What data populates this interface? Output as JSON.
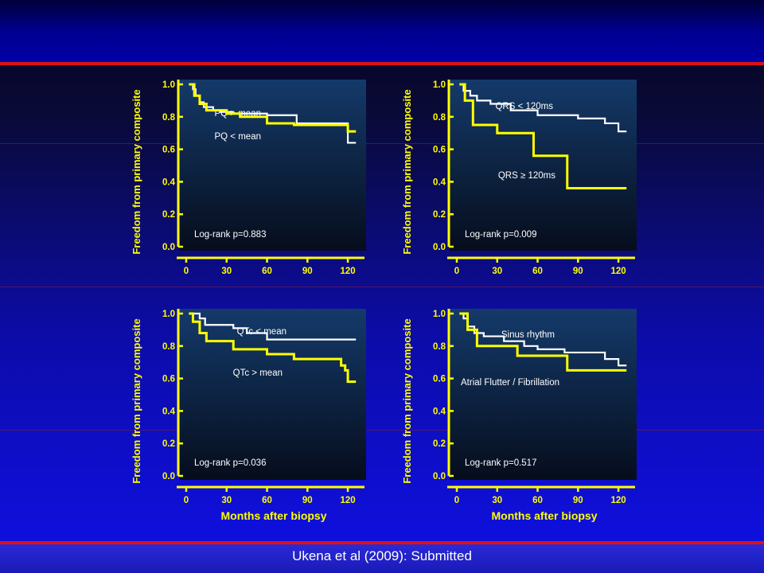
{
  "citation": "Ukena et al (2009): Submitted",
  "colors": {
    "axis": "#ffff00",
    "series_white": "#ffffff",
    "series_yellow": "#ffff00",
    "accent_red": "#e01010"
  },
  "chart_data": [
    {
      "type": "line",
      "ylabel": "Freedom from primary composite",
      "xlabel": "",
      "xlim": [
        0,
        130
      ],
      "ylim": [
        0,
        1.0
      ],
      "xticks": [
        "0",
        "30",
        "60",
        "90",
        "120"
      ],
      "yticks": [
        "0.0",
        "0.2",
        "0.4",
        "0.6",
        "0.8",
        "1.0"
      ],
      "annotation": "Log-rank p=0.883",
      "series": [
        {
          "name": "PQ > mean",
          "color": "white",
          "x": [
            2,
            5,
            7,
            10,
            13,
            20,
            25,
            35,
            60,
            80,
            82,
            116,
            120,
            126
          ],
          "y": [
            1.0,
            0.97,
            0.93,
            0.89,
            0.86,
            0.84,
            0.83,
            0.82,
            0.81,
            0.81,
            0.76,
            0.76,
            0.64,
            0.64
          ]
        },
        {
          "name": "PQ < mean",
          "color": "yellow",
          "x": [
            2,
            6,
            10,
            15,
            30,
            40,
            60,
            80,
            110,
            120,
            126
          ],
          "y": [
            1.0,
            0.93,
            0.88,
            0.84,
            0.82,
            0.8,
            0.76,
            0.75,
            0.75,
            0.71,
            0.71
          ]
        }
      ]
    },
    {
      "type": "line",
      "ylabel": "Freedom from primary composite",
      "xlabel": "",
      "xlim": [
        0,
        130
      ],
      "ylim": [
        0,
        1.0
      ],
      "xticks": [
        "0",
        "30",
        "60",
        "90",
        "120"
      ],
      "yticks": [
        "0.0",
        "0.2",
        "0.4",
        "0.6",
        "0.8",
        "1.0"
      ],
      "annotation": "Log-rank p=0.009",
      "series": [
        {
          "name": "QRS < 120ms",
          "color": "white",
          "x": [
            2,
            5,
            10,
            15,
            25,
            40,
            60,
            90,
            110,
            120,
            126
          ],
          "y": [
            1.0,
            0.96,
            0.93,
            0.9,
            0.88,
            0.84,
            0.81,
            0.79,
            0.76,
            0.71,
            0.71
          ]
        },
        {
          "name": "QRS ≥ 120ms",
          "color": "yellow",
          "x": [
            2,
            6,
            12,
            30,
            57,
            82,
            126
          ],
          "y": [
            1.0,
            0.9,
            0.75,
            0.7,
            0.56,
            0.36,
            0.36
          ]
        }
      ]
    },
    {
      "type": "line",
      "ylabel": "Freedom from primary composite",
      "xlabel": "Months after biopsy",
      "xlim": [
        0,
        130
      ],
      "ylim": [
        0,
        1.0
      ],
      "xticks": [
        "0",
        "30",
        "60",
        "90",
        "120"
      ],
      "yticks": [
        "0.0",
        "0.2",
        "0.4",
        "0.6",
        "0.8",
        "1.0"
      ],
      "annotation": "Log-rank p=0.036",
      "series": [
        {
          "name": "QTc < mean",
          "color": "white",
          "x": [
            2,
            10,
            14,
            35,
            45,
            60,
            126
          ],
          "y": [
            1.0,
            0.97,
            0.93,
            0.91,
            0.88,
            0.84,
            0.84
          ]
        },
        {
          "name": "QTc > mean",
          "color": "yellow",
          "x": [
            2,
            5,
            10,
            15,
            35,
            60,
            80,
            115,
            118,
            120,
            126
          ],
          "y": [
            1.0,
            0.95,
            0.88,
            0.83,
            0.78,
            0.75,
            0.72,
            0.68,
            0.65,
            0.58,
            0.58
          ]
        }
      ]
    },
    {
      "type": "line",
      "ylabel": "Freedom from primary composite",
      "xlabel": "Months after biopsy",
      "xlim": [
        0,
        130
      ],
      "ylim": [
        0,
        1.0
      ],
      "xticks": [
        "0",
        "30",
        "60",
        "90",
        "120"
      ],
      "yticks": [
        "0.0",
        "0.2",
        "0.4",
        "0.6",
        "0.8",
        "1.0"
      ],
      "annotation": "Log-rank p=0.517",
      "series": [
        {
          "name": "Sinus rhythm",
          "color": "white",
          "x": [
            2,
            5,
            8,
            13,
            20,
            35,
            50,
            60,
            80,
            110,
            120,
            126
          ],
          "y": [
            1.0,
            0.97,
            0.92,
            0.88,
            0.86,
            0.83,
            0.8,
            0.78,
            0.76,
            0.72,
            0.68,
            0.68
          ]
        },
        {
          "name": "Atrial Flutter / Fibrillation",
          "color": "yellow",
          "x": [
            2,
            8,
            15,
            45,
            82,
            126
          ],
          "y": [
            1.0,
            0.9,
            0.8,
            0.74,
            0.65,
            0.65
          ]
        }
      ]
    }
  ]
}
